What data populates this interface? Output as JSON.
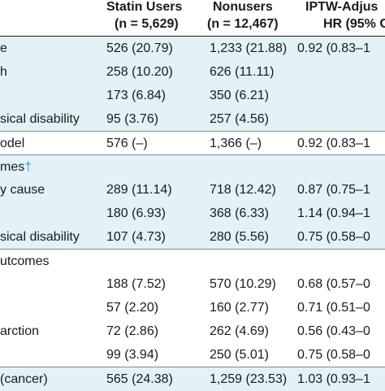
{
  "header": {
    "columns": [
      {
        "line1": "",
        "line2": ""
      },
      {
        "line1": "Statin Users",
        "line2": "(n = 5,629)"
      },
      {
        "line1": "Nonusers",
        "line2": "(n = 12,467)"
      },
      {
        "line1": "IPTW-Adjus",
        "line2": "HR (95% C"
      }
    ]
  },
  "rows": [
    {
      "label": "e",
      "dagger": "",
      "c1": "526 (20.79)",
      "c2": "1,233 (21.88)",
      "c3": "0.92 (0.83–1",
      "style": "shade"
    },
    {
      "label": "h",
      "dagger": "",
      "c1": "258 (10.20)",
      "c2": "626 (11.11)",
      "c3": "",
      "style": "shade"
    },
    {
      "label": "",
      "dagger": "",
      "c1": "173 (6.84)",
      "c2": "350 (6.21)",
      "c3": "",
      "style": "shade"
    },
    {
      "label": "sical disability",
      "dagger": "",
      "c1": "95 (3.76)",
      "c2": "257 (4.56)",
      "c3": "",
      "style": "shade"
    },
    {
      "label": "odel",
      "dagger": "",
      "c1": "576 (–)",
      "c2": "1,366 (–)",
      "c3": "0.92 (0.83–1",
      "style": "white"
    },
    {
      "label": "mes",
      "dagger": "†",
      "c1": "",
      "c2": "",
      "c3": "",
      "style": "shade"
    },
    {
      "label": "y cause",
      "dagger": "",
      "c1": "289 (11.14)",
      "c2": "718 (12.42)",
      "c3": "0.87 (0.75–1",
      "style": "shade"
    },
    {
      "label": "",
      "dagger": "",
      "c1": "180 (6.93)",
      "c2": "368 (6.33)",
      "c3": "1.14 (0.94–1",
      "style": "shade"
    },
    {
      "label": "sical disability",
      "dagger": "",
      "c1": "107 (4.73)",
      "c2": "280 (5.56)",
      "c3": "0.75 (0.58–0",
      "style": "shade"
    },
    {
      "label": "utcomes",
      "dagger": "",
      "c1": "",
      "c2": "",
      "c3": "",
      "style": "white"
    },
    {
      "label": "",
      "dagger": "",
      "c1": "188 (7.52)",
      "c2": "570 (10.29)",
      "c3": "0.68 (0.57–0",
      "style": "white"
    },
    {
      "label": "",
      "dagger": "",
      "c1": "57 (2.20)",
      "c2": "160 (2.77)",
      "c3": "0.71 (0.51–0",
      "style": "white"
    },
    {
      "label": "arction",
      "dagger": "",
      "c1": "72 (2.86)",
      "c2": "262 (4.69)",
      "c3": "0.56 (0.43–0",
      "style": "white"
    },
    {
      "label": "",
      "dagger": "",
      "c1": "99 (3.94)",
      "c2": "250 (5.01)",
      "c3": "0.75 (0.58–0",
      "style": "white"
    },
    {
      "label": "(cancer)",
      "dagger": "",
      "c1": "565 (24.38)",
      "c2": "1,259 (23.53)",
      "c3": "1.03 (0.93–1",
      "style": "shade"
    }
  ]
}
